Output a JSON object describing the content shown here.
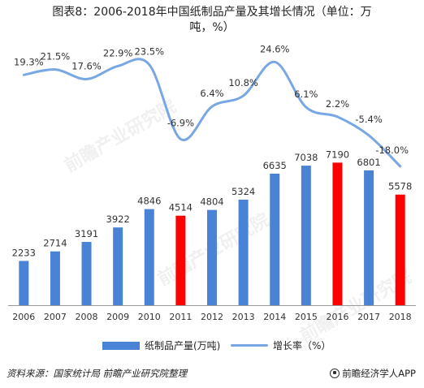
{
  "title_line1": "图表8：2006-2018年中国纸制品产量及其增长情况（单位：万",
  "title_line2": "吨，%）",
  "chart_data": {
    "type": "bar",
    "categories": [
      "2006",
      "2007",
      "2008",
      "2009",
      "2010",
      "2011",
      "2012",
      "2013",
      "2014",
      "2015",
      "2016",
      "2017",
      "2018"
    ],
    "series": [
      {
        "name": "纸制品产量(万吨)",
        "type": "bar",
        "values": [
          2233,
          2714,
          3191,
          3922,
          4846,
          4514,
          4804,
          5324,
          6635,
          7038,
          7190,
          6801,
          5578
        ],
        "value_labels": [
          "2233",
          "2714",
          "3191",
          "3922",
          "4846",
          "4514",
          "4804",
          "5324",
          "6635",
          "7038",
          "7190",
          "6801",
          "5578"
        ],
        "colors": [
          "#4a83d6",
          "#4a83d6",
          "#4a83d6",
          "#4a83d6",
          "#4a83d6",
          "#ff0000",
          "#4a83d6",
          "#4a83d6",
          "#4a83d6",
          "#4a83d6",
          "#ff0000",
          "#4a83d6",
          "#ff0000"
        ]
      },
      {
        "name": "增长率（%）",
        "type": "line",
        "values": [
          19.3,
          21.5,
          17.6,
          22.9,
          23.5,
          -6.9,
          6.4,
          10.8,
          24.6,
          6.1,
          2.2,
          -5.4,
          -18.0
        ],
        "value_labels": [
          "19.3%",
          "21.5%",
          "17.6%",
          "22.9%",
          "23.5%",
          "-6.9%",
          "6.4%",
          "10.8%",
          "24.6%",
          "6.1%",
          "2.2%",
          "-5.4%",
          "-18.0%"
        ],
        "color": "#79a7e3"
      }
    ],
    "bar_color": "#4a83d6",
    "highlight_color": "#ff0000",
    "ylim_bar": [
      0,
      14000
    ],
    "ylim_line": [
      -25,
      30
    ],
    "legend_position": "bottom"
  },
  "legend": {
    "bar_label": "纸制品产量(万吨)",
    "line_label": "增长率（%）"
  },
  "footer": {
    "source": "资料来源：国家统计局 前瞻产业研究院整理",
    "brand": "前瞻经济学人APP"
  },
  "watermarks": [
    "前瞻产业研究院",
    "前瞻产业研究院",
    "前瞻产业研究院"
  ]
}
